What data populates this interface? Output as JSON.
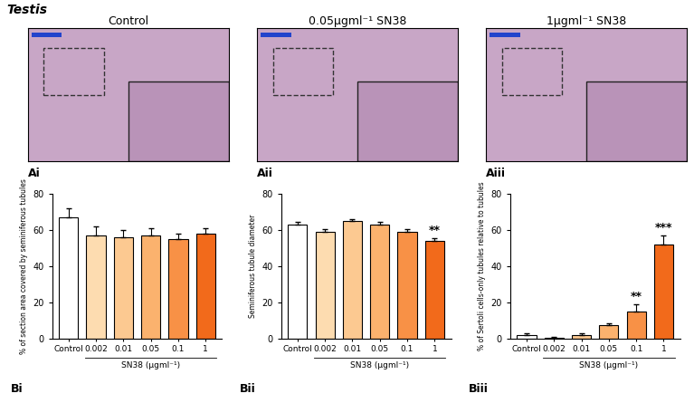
{
  "figure_label": "Testis",
  "micrographs": [
    {
      "title": "Control",
      "panel": "Ai"
    },
    {
      "title": "0.05μgml⁻¹ SN38",
      "panel": "Aii"
    },
    {
      "title": "1μgml⁻¹ SN38",
      "panel": "Aiii"
    }
  ],
  "chart_data": [
    {
      "type": "bar",
      "panel": "Bi",
      "ylabel": "% of section area covered by seminiferous tubules",
      "xlabel": "SN38 (μgml⁻¹)",
      "categories": [
        "Control",
        "0.002",
        "0.01",
        "0.05",
        "0.1",
        "1"
      ],
      "values": [
        67,
        57,
        56,
        57,
        55,
        58
      ],
      "errors": [
        5,
        5,
        4,
        4,
        3,
        3
      ],
      "colors": [
        "#ffffff",
        "#fddcb0",
        "#fcc991",
        "#fbb26e",
        "#f89146",
        "#f26a1b"
      ],
      "ylim": [
        0,
        80
      ],
      "yticks": [
        0,
        20,
        40,
        60,
        80
      ],
      "annotations": []
    },
    {
      "type": "bar",
      "panel": "Bii",
      "ylabel": "Seminiferous tubule diameter",
      "xlabel": "SN38 (μgml⁻¹)",
      "categories": [
        "Control",
        "0.002",
        "0.01",
        "0.05",
        "0.1",
        "1"
      ],
      "values": [
        63,
        59,
        65,
        63,
        59,
        54
      ],
      "errors": [
        1.5,
        1.5,
        1,
        1.5,
        1.5,
        1.5
      ],
      "colors": [
        "#ffffff",
        "#fddcb0",
        "#fcc991",
        "#fbb26e",
        "#f89146",
        "#f26a1b"
      ],
      "ylim": [
        0,
        80
      ],
      "yticks": [
        0,
        20,
        40,
        60,
        80
      ],
      "annotations": [
        {
          "category": "1",
          "text": "**"
        }
      ]
    },
    {
      "type": "bar",
      "panel": "Biii",
      "ylabel": "% of Sertoli cells-only tubules relative to tubules",
      "xlabel": "SN38 (μgml⁻¹)",
      "categories": [
        "Control",
        "0.002",
        "0.01",
        "0.05",
        "0.1",
        "1"
      ],
      "values": [
        2,
        0.5,
        2,
        7.5,
        15,
        52
      ],
      "errors": [
        1,
        0.5,
        1,
        1,
        4,
        5
      ],
      "colors": [
        "#ffffff",
        "#fddcb0",
        "#fcc991",
        "#fbb26e",
        "#f89146",
        "#f26a1b"
      ],
      "ylim": [
        0,
        80
      ],
      "yticks": [
        0,
        20,
        40,
        60,
        80
      ],
      "annotations": [
        {
          "category": "0.1",
          "text": "**"
        },
        {
          "category": "1",
          "text": "***"
        }
      ]
    }
  ]
}
